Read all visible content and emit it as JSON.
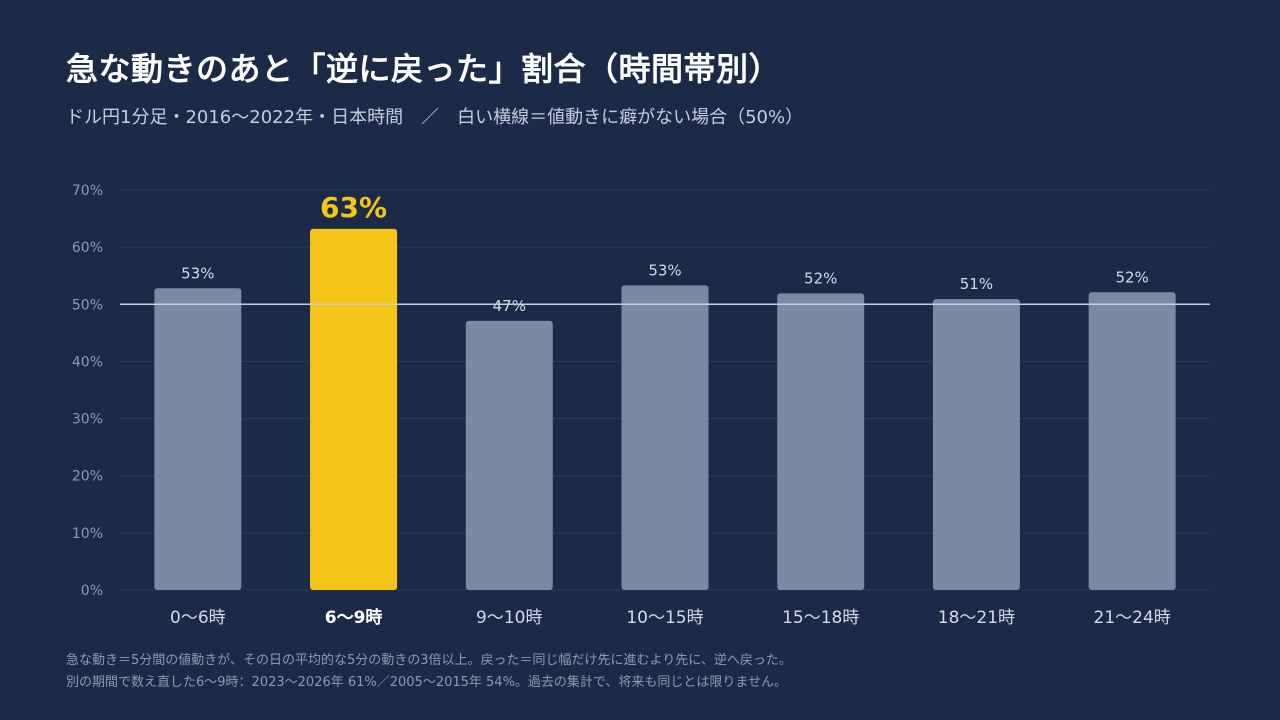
{
  "header": {
    "title": "急な動きのあと「逆に戻った」割合（時間帯別）",
    "subtitle": "ドル円1分足・2016〜2022年・日本時間　／　白い横線＝値動きに癖がない場合（50%）"
  },
  "colors": {
    "background": "#1b2a47",
    "bar": "#7b89a3",
    "highlight": "#f5c518",
    "grid": "#2b3b5a",
    "reference_line": "#c5cfdf"
  },
  "chart_data": {
    "type": "bar",
    "categories": [
      "0〜6時",
      "6〜9時",
      "9〜10時",
      "10〜15時",
      "15〜18時",
      "18〜21時",
      "21〜24時"
    ],
    "values": [
      52.8,
      63.2,
      47.1,
      53.3,
      51.9,
      50.9,
      52.1
    ],
    "data_labels": [
      "53%",
      "63%",
      "47%",
      "53%",
      "52%",
      "51%",
      "52%"
    ],
    "highlight_index": 1,
    "ylim": [
      0,
      70
    ],
    "yticks": [
      0,
      10,
      20,
      30,
      40,
      50,
      60,
      70
    ],
    "ytick_labels": [
      "0%",
      "10%",
      "20%",
      "30%",
      "40%",
      "50%",
      "60%",
      "70%"
    ],
    "reference_line": 50,
    "grid": true,
    "xlabel": "",
    "ylabel": ""
  },
  "footnotes": [
    "急な動き＝5分間の値動きが、その日の平均的な5分の動きの3倍以上。戻った＝同じ幅だけ先に進むより先に、逆へ戻った。",
    "別の期間で数え直した6〜9時：2023〜2026年 61%／2005〜2015年 54%。過去の集計で、将来も同じとは限りません。"
  ]
}
